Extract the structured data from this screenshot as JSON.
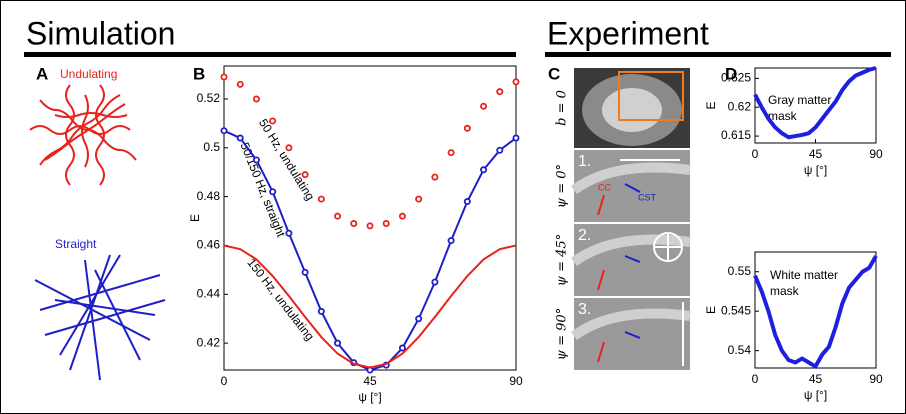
{
  "headers": [
    "Simulation",
    "Experiment"
  ],
  "panel_letters": [
    "A",
    "B",
    "C",
    "D"
  ],
  "panel_a": {
    "labels": [
      "Undulating",
      "Straight"
    ]
  },
  "panel_c": {
    "row_labels": [
      "b = 0",
      "ψ = 0°",
      "ψ = 45°",
      "ψ = 90°"
    ],
    "numbers": [
      "1.",
      "2.",
      "3."
    ],
    "tags": [
      "CC",
      "CST"
    ]
  },
  "chart_data": [
    {
      "type": "line",
      "xlabel": "ψ [°]",
      "ylabel": "E",
      "x": [
        0,
        5,
        10,
        15,
        20,
        25,
        30,
        35,
        40,
        45,
        50,
        55,
        60,
        65,
        70,
        75,
        80,
        85,
        90
      ],
      "xlim": [
        0,
        90
      ],
      "xticks": [
        0,
        45,
        90
      ],
      "ylim": [
        0.409,
        0.5335
      ],
      "yticks": [
        0.42,
        0.44,
        0.46,
        0.48,
        0.5,
        0.52
      ],
      "series": [
        {
          "name": "50 Hz, undulating",
          "color": "#e8221c",
          "style": "markers",
          "values": [
            0.529,
            0.526,
            0.52,
            0.511,
            0.5,
            0.489,
            0.479,
            0.472,
            0.469,
            0.468,
            0.469,
            0.472,
            0.479,
            0.488,
            0.498,
            0.508,
            0.517,
            0.523,
            0.527
          ]
        },
        {
          "name": "50/150 Hz, straight",
          "color": "#1f1fc8",
          "style": "line+markers",
          "values": [
            0.507,
            0.504,
            0.495,
            0.482,
            0.465,
            0.449,
            0.433,
            0.42,
            0.412,
            0.409,
            0.411,
            0.418,
            0.43,
            0.445,
            0.462,
            0.478,
            0.491,
            0.499,
            0.504
          ]
        },
        {
          "name": "150 Hz, undulating",
          "color": "#e8221c",
          "style": "line",
          "values": [
            0.46,
            0.4585,
            0.4543,
            0.4475,
            0.4393,
            0.4307,
            0.4225,
            0.4157,
            0.4115,
            0.41,
            0.4115,
            0.4157,
            0.4225,
            0.4307,
            0.4393,
            0.4475,
            0.4543,
            0.4585,
            0.46
          ]
        }
      ]
    },
    {
      "type": "line",
      "xlabel": "ψ [°]",
      "ylabel": "E",
      "annotation": [
        "Gray matter",
        "mask"
      ],
      "x": [
        0,
        5,
        10,
        15,
        20,
        25,
        30,
        35,
        40,
        45,
        50,
        55,
        60,
        65,
        70,
        75,
        80,
        85,
        90
      ],
      "xlim": [
        0,
        90
      ],
      "xticks": [
        0,
        45,
        90
      ],
      "ylim": [
        0.6138,
        0.6268
      ],
      "yticks": [
        0.615,
        0.62,
        0.625
      ],
      "series": [
        {
          "color": "#1f1fe0",
          "style": "thick",
          "values": [
            0.6222,
            0.62,
            0.618,
            0.6165,
            0.6155,
            0.6148,
            0.615,
            0.6152,
            0.6155,
            0.6165,
            0.618,
            0.6195,
            0.621,
            0.623,
            0.6245,
            0.6255,
            0.626,
            0.6265,
            0.6268
          ]
        }
      ]
    },
    {
      "type": "line",
      "xlabel": "ψ [°]",
      "ylabel": "E",
      "annotation": [
        "White matter",
        "mask"
      ],
      "x": [
        0,
        5,
        10,
        15,
        20,
        25,
        30,
        35,
        40,
        45,
        50,
        55,
        60,
        65,
        70,
        75,
        80,
        85,
        90
      ],
      "xlim": [
        0,
        90
      ],
      "xticks": [
        0,
        45,
        90
      ],
      "ylim": [
        0.5378,
        0.5525
      ],
      "yticks": [
        0.54,
        0.545,
        0.55
      ],
      "series": [
        {
          "color": "#1f1fe0",
          "style": "thick",
          "values": [
            0.5495,
            0.5475,
            0.545,
            0.542,
            0.54,
            0.5388,
            0.5385,
            0.539,
            0.5385,
            0.538,
            0.5395,
            0.5405,
            0.543,
            0.546,
            0.548,
            0.549,
            0.55,
            0.5505,
            0.552
          ]
        }
      ]
    }
  ]
}
